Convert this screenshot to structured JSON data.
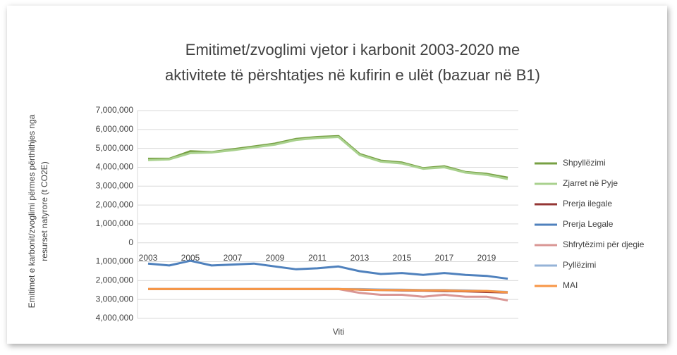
{
  "chart_data": {
    "type": "line",
    "title": [
      "Emitimet/zvoglimi  vjetor i karbonit 2003-2020  me",
      "aktivitete të përshtatjes në kufirin e ulët (bazuar në B1)"
    ],
    "ylabel": [
      "Emitimet  e karbonit/zvoglimi përmes përthithjes nga",
      "resurset natyrore (t CO2E)"
    ],
    "xlabel": "Viti",
    "categories": [
      "2003",
      null,
      "2005",
      null,
      "2007",
      null,
      "2009",
      null,
      "2011",
      null,
      "2013",
      null,
      "2015",
      null,
      "2017",
      null,
      "2019",
      null
    ],
    "ylim": [
      -4000000,
      7000000
    ],
    "yticks": [
      {
        "value": 7000000,
        "label": "7,000,000"
      },
      {
        "value": 6000000,
        "label": "6,000,000"
      },
      {
        "value": 5000000,
        "label": "5,000,000"
      },
      {
        "value": 4000000,
        "label": "4,000,000"
      },
      {
        "value": 3000000,
        "label": "3,000,000"
      },
      {
        "value": 2000000,
        "label": "2,000,000"
      },
      {
        "value": 1000000,
        "label": "1,000,000"
      },
      0,
      {
        "value": -1000000,
        "label": "1,000,000"
      },
      {
        "value": -2000000,
        "label": "2,000,000"
      },
      {
        "value": -3000000,
        "label": "3,000,000"
      },
      {
        "value": -4000000,
        "label": "4,000,000"
      }
    ],
    "grid": true,
    "legend": "right",
    "series": [
      {
        "name": "Shpyllëzimi",
        "color": "#77a043",
        "values": [
          4450000,
          4450000,
          4850000,
          4800000,
          4950000,
          5100000,
          5250000,
          5500000,
          5600000,
          5650000,
          4700000,
          4350000,
          4250000,
          3950000,
          4050000,
          3750000,
          3650000,
          3450000
        ]
      },
      {
        "name": "Zjarret në Pyje",
        "color": "#a9d18e",
        "values": [
          4380000,
          4420000,
          4750000,
          4780000,
          4900000,
          5050000,
          5200000,
          5450000,
          5550000,
          5600000,
          4650000,
          4300000,
          4200000,
          3920000,
          4000000,
          3720000,
          3600000,
          3380000
        ]
      },
      {
        "name": "Prerja ilegale",
        "color": "#943634",
        "values": [
          -2450000,
          -2450000,
          -2450000,
          -2450000,
          -2450000,
          -2450000,
          -2450000,
          -2450000,
          -2450000,
          -2450000,
          -2480000,
          -2500000,
          -2520000,
          -2530000,
          -2550000,
          -2570000,
          -2600000,
          -2630000
        ]
      },
      {
        "name": "Prerja Legale",
        "color": "#4f81bd",
        "values": [
          -1100000,
          -1200000,
          -950000,
          -1200000,
          -1150000,
          -1100000,
          -1250000,
          -1400000,
          -1350000,
          -1250000,
          -1500000,
          -1650000,
          -1600000,
          -1700000,
          -1600000,
          -1700000,
          -1750000,
          -1900000
        ]
      },
      {
        "name": "Shfrytëzimi për djegie",
        "color": "#d99694",
        "values": [
          -2450000,
          -2450000,
          -2450000,
          -2450000,
          -2450000,
          -2450000,
          -2450000,
          -2450000,
          -2450000,
          -2450000,
          -2650000,
          -2750000,
          -2750000,
          -2850000,
          -2750000,
          -2850000,
          -2850000,
          -3050000
        ]
      },
      {
        "name": "Pyllëzimi",
        "color": "#95b3d7",
        "values": [
          -2450000,
          -2450000,
          -2450000,
          -2450000,
          -2450000,
          -2450000,
          -2450000,
          -2450000,
          -2450000,
          -2450000,
          -2450000,
          -2470000,
          -2480000,
          -2500000,
          -2500000,
          -2520000,
          -2550000,
          -2600000
        ]
      },
      {
        "name": "MAI",
        "color": "#f79646",
        "values": [
          -2450000,
          -2450000,
          -2450000,
          -2450000,
          -2450000,
          -2450000,
          -2450000,
          -2450000,
          -2450000,
          -2450000,
          -2470000,
          -2500000,
          -2500000,
          -2520000,
          -2520000,
          -2550000,
          -2550000,
          -2620000
        ]
      }
    ]
  }
}
